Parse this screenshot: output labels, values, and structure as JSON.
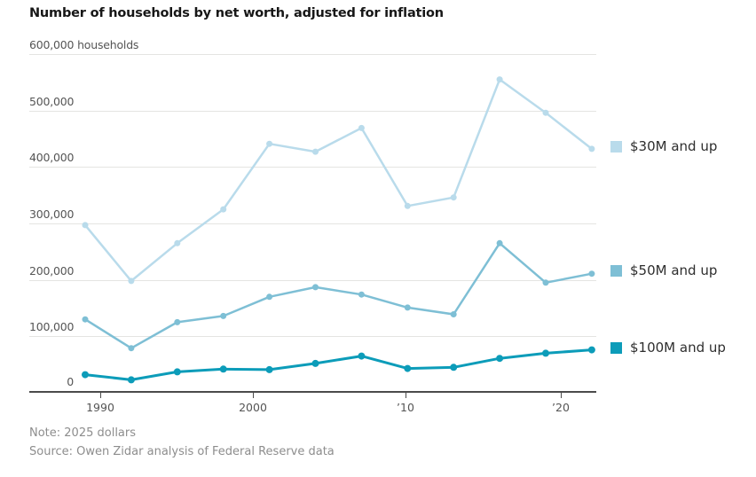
{
  "title": "Number of households by net worth, adjusted for inflation",
  "chart_data": {
    "type": "line",
    "x": [
      1989,
      1992,
      1995,
      1998,
      2001,
      2004,
      2007,
      2010,
      2013,
      2016,
      2019,
      2022
    ],
    "series": [
      {
        "name": "$30M and up",
        "color": "#b9dbeb",
        "values": [
          297000,
          198000,
          265000,
          325000,
          441000,
          427000,
          469000,
          331000,
          346000,
          555000,
          496000,
          432000
        ]
      },
      {
        "name": "$50M and up",
        "color": "#7ebfd5",
        "values": [
          130000,
          79000,
          125000,
          136000,
          170000,
          187000,
          174000,
          151000,
          139000,
          265000,
          195000,
          211000
        ]
      },
      {
        "name": "$100M and up",
        "color": "#0c9cb9",
        "values": [
          32000,
          23000,
          37000,
          42000,
          41000,
          52000,
          65000,
          43000,
          45000,
          61000,
          70000,
          76000
        ]
      }
    ],
    "ylim": [
      0,
      600000
    ],
    "ytick_labels": [
      "600,000 households",
      "500,000",
      "400,000",
      "300,000",
      "200,000",
      "100,000",
      "0"
    ],
    "ytick_values": [
      600000,
      500000,
      400000,
      300000,
      200000,
      100000,
      0
    ],
    "xtick_labels": [
      "1990",
      "2000",
      "’10",
      "’20"
    ],
    "xtick_years": [
      1990,
      2000,
      2010,
      2020
    ],
    "grid": true,
    "legend_position": "right",
    "axis_color": "#4b4b4b",
    "grid_color": "#e4e4e2"
  },
  "notes": {
    "note": "Note: 2025 dollars",
    "source": "Source: Owen Zidar analysis of Federal Reserve data"
  }
}
